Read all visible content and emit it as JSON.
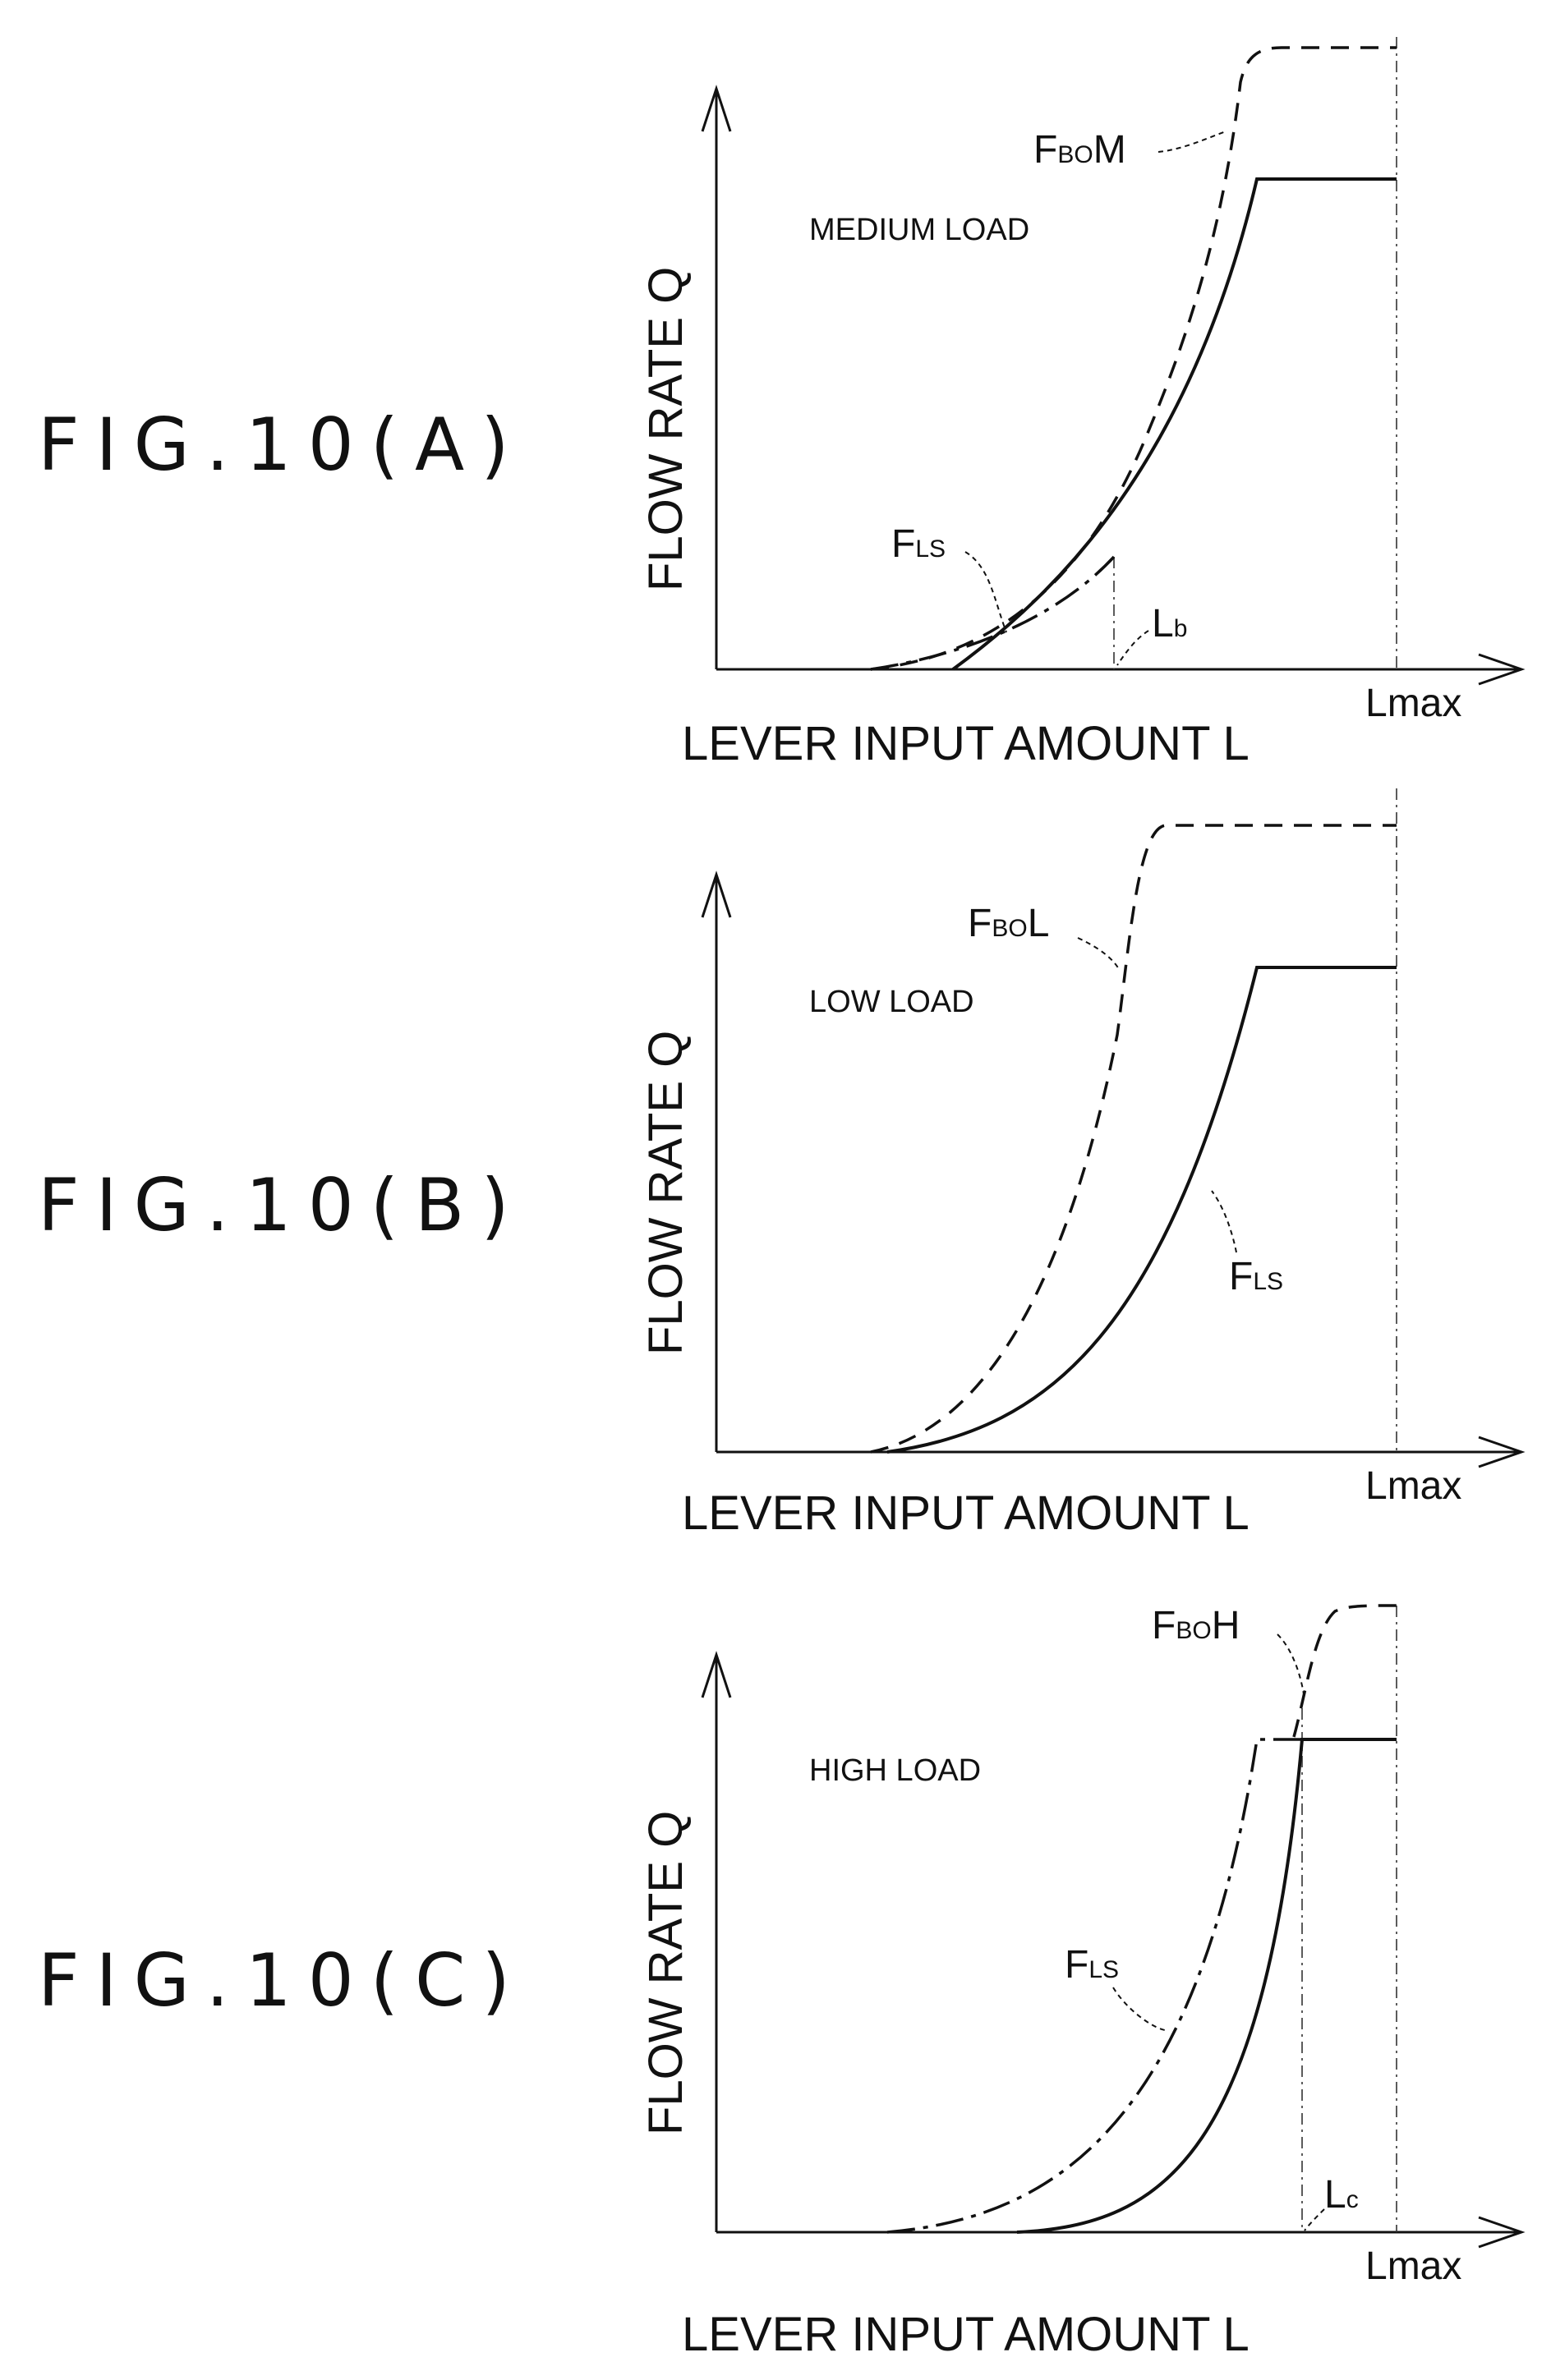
{
  "panels": [
    {
      "fig_label": "FIG.10(A)",
      "load_label": "MEDIUM LOAD",
      "y_label": "FLOW RATE Q",
      "x_label": "LEVER INPUT AMOUNT L",
      "lmax_label": "Lmax",
      "curves": [
        {
          "main": "F",
          "sub": "BO",
          "tail": "M"
        },
        {
          "main": "F",
          "sub": "LS",
          "tail": ""
        }
      ],
      "marker": {
        "main": "L",
        "sub": "b"
      }
    },
    {
      "fig_label": "FIG.10(B)",
      "load_label": "LOW LOAD",
      "y_label": "FLOW RATE Q",
      "x_label": "LEVER INPUT AMOUNT L",
      "lmax_label": "Lmax",
      "curves": [
        {
          "main": "F",
          "sub": "BO",
          "tail": "L"
        },
        {
          "main": "F",
          "sub": "LS",
          "tail": ""
        }
      ]
    },
    {
      "fig_label": "FIG.10(C)",
      "load_label": "HIGH LOAD",
      "y_label": "FLOW RATE Q",
      "x_label": "LEVER INPUT AMOUNT L",
      "lmax_label": "Lmax",
      "curves": [
        {
          "main": "F",
          "sub": "BO",
          "tail": "H"
        },
        {
          "main": "F",
          "sub": "LS",
          "tail": ""
        }
      ],
      "marker": {
        "main": "L",
        "sub": "c"
      }
    }
  ]
}
